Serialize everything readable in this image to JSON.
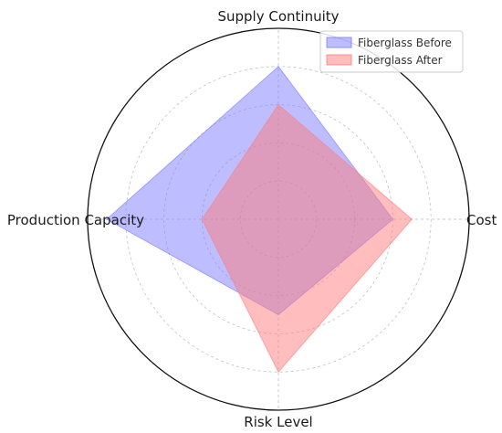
{
  "chart_data": {
    "type": "radar",
    "axes": [
      "Supply Continuity",
      "Cost",
      "Risk Level",
      "Production Capacity"
    ],
    "rlim": [
      0,
      10
    ],
    "grid": true,
    "legend_position": "top-right",
    "series": [
      {
        "name": "Fiberglass Before",
        "values": [
          8,
          6,
          5,
          9
        ],
        "color": "#7b7bff"
      },
      {
        "name": "Fiberglass After",
        "values": [
          6,
          7,
          8,
          4
        ],
        "color": "#ff7b7b"
      }
    ]
  }
}
